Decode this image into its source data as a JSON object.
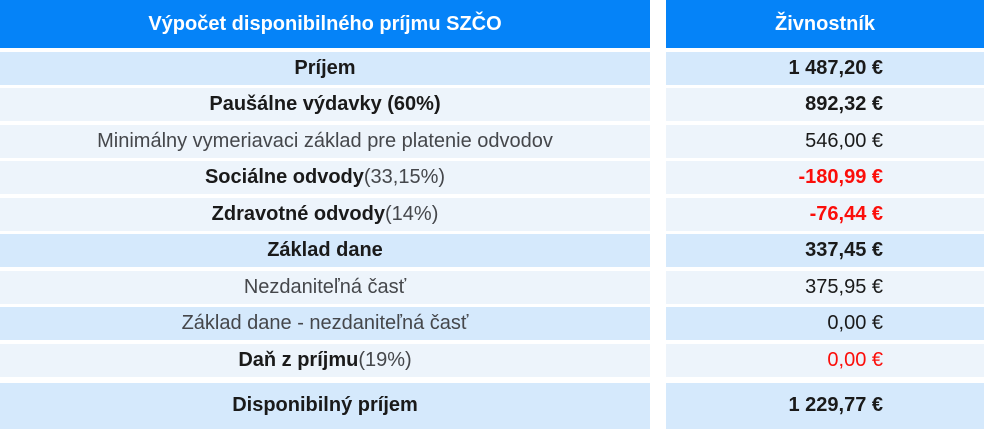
{
  "header": {
    "title": "Výpočet disponibilného príjmu SZČO",
    "column_header": "Živnostník"
  },
  "rows": [
    {
      "label": "Príjem",
      "suffix": "",
      "value": "1 487,20 €",
      "label_bold": true,
      "value_bold": true,
      "value_color": "default",
      "shade": "blue",
      "total": false
    },
    {
      "label": "Paušálne výdavky (60%)",
      "suffix": "",
      "value": "892,32 €",
      "label_bold": true,
      "value_bold": true,
      "value_color": "default",
      "shade": "pale",
      "total": false
    },
    {
      "label": "Minimálny vymeriavaci základ pre platenie odvodov",
      "suffix": "",
      "value": "546,00 €",
      "label_bold": false,
      "value_bold": false,
      "value_color": "default",
      "shade": "pale",
      "total": false
    },
    {
      "label": "Sociálne odvody",
      "suffix": " (33,15%)",
      "value": "-180,99 €",
      "label_bold": true,
      "value_bold": true,
      "value_color": "red",
      "shade": "pale",
      "total": false
    },
    {
      "label": "Zdravotné odvody",
      "suffix": " (14%)",
      "value": "-76,44 €",
      "label_bold": true,
      "value_bold": true,
      "value_color": "red",
      "shade": "pale",
      "total": false
    },
    {
      "label": "Základ dane",
      "suffix": "",
      "value": "337,45 €",
      "label_bold": true,
      "value_bold": true,
      "value_color": "default",
      "shade": "blue",
      "total": false
    },
    {
      "label": "Nezdaniteľná časť",
      "suffix": "",
      "value": "375,95 €",
      "label_bold": false,
      "value_bold": false,
      "value_color": "default",
      "shade": "pale",
      "total": false
    },
    {
      "label": "Základ dane - nezdaniteľná časť",
      "suffix": "",
      "value": "0,00 €",
      "label_bold": false,
      "value_bold": false,
      "value_color": "default",
      "shade": "blue",
      "total": false
    },
    {
      "label": "Daň z príjmu",
      "suffix": " (19%)",
      "value": "0,00 €",
      "label_bold": true,
      "value_bold": false,
      "value_color": "red",
      "shade": "pale",
      "total": false
    },
    {
      "label": "Disponibilný príjem",
      "suffix": "",
      "value": "1 229,77 €",
      "label_bold": true,
      "value_bold": true,
      "value_color": "default",
      "shade": "blue",
      "total": true
    }
  ],
  "colors": {
    "header_bg": "#0583f8",
    "row_blue": "#d5e9fc",
    "row_pale": "#edf4fb",
    "negative": "#fb0e0a",
    "text_bold": "#1a1a1a",
    "text_regular": "#45474b"
  }
}
